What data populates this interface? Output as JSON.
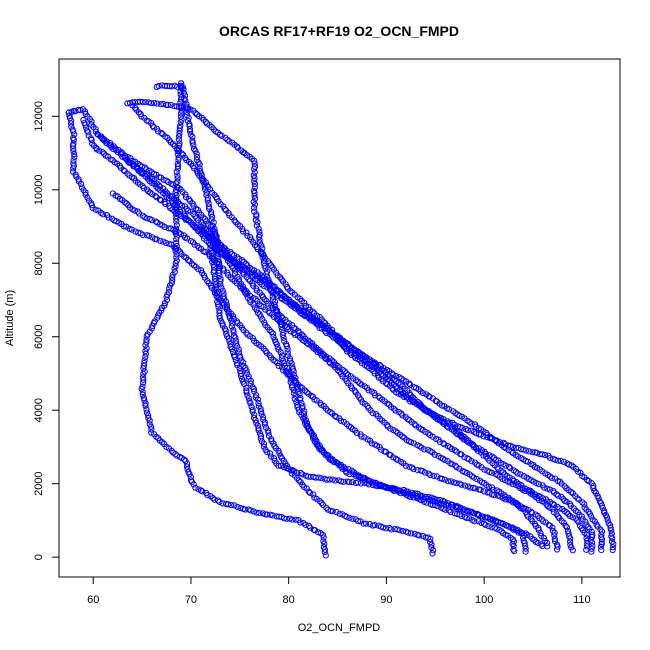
{
  "chart_data": {
    "type": "scatter",
    "title": "ORCAS RF17+RF19 O2_OCN_FMPD",
    "xlabel": "O2_OCN_FMPD",
    "ylabel": "Altitude (m)",
    "xlim": [
      56.5,
      113.9
    ],
    "ylim": [
      -540,
      13560
    ],
    "x_ticks": [
      60,
      70,
      80,
      90,
      100,
      110
    ],
    "y_ticks": [
      0,
      2000,
      4000,
      6000,
      8000,
      10000,
      12000
    ],
    "grid": false,
    "legend": "none",
    "marker": "open-circle",
    "series_color": "#0000ff",
    "profiles": [
      [
        [
          83.8,
          50
        ],
        [
          83.5,
          600
        ],
        [
          81,
          1000
        ],
        [
          77,
          1200
        ],
        [
          73,
          1500
        ],
        [
          70.5,
          1900
        ],
        [
          70,
          2100
        ],
        [
          69.5,
          2600
        ],
        [
          68,
          2900
        ],
        [
          66,
          3400
        ],
        [
          65,
          4500
        ],
        [
          65.5,
          6000
        ],
        [
          67.5,
          7000
        ],
        [
          68.5,
          8000
        ],
        [
          68.5,
          10000
        ],
        [
          69,
          12000
        ],
        [
          69,
          12900
        ]
      ],
      [
        [
          94.8,
          100
        ],
        [
          94.5,
          500
        ],
        [
          92,
          700
        ],
        [
          88,
          900
        ],
        [
          84,
          1300
        ],
        [
          82,
          1800
        ],
        [
          80,
          2400
        ],
        [
          78,
          3300
        ],
        [
          76.5,
          4500
        ],
        [
          75,
          5500
        ],
        [
          74,
          6500
        ],
        [
          73,
          7500
        ],
        [
          72.5,
          8800
        ],
        [
          71.5,
          10000
        ],
        [
          70,
          11500
        ],
        [
          69.2,
          12800
        ],
        [
          67,
          12850
        ],
        [
          66.5,
          12800
        ]
      ],
      [
        [
          103,
          150
        ],
        [
          103,
          500
        ],
        [
          101,
          800
        ],
        [
          98,
          1100
        ],
        [
          95,
          1400
        ],
        [
          92,
          1700
        ],
        [
          88,
          2100
        ],
        [
          84,
          2700
        ],
        [
          82,
          3500
        ],
        [
          81,
          4500
        ],
        [
          80,
          5500
        ],
        [
          79,
          6500
        ],
        [
          77.5,
          8000
        ],
        [
          76.5,
          9500
        ],
        [
          76.5,
          10800
        ],
        [
          73,
          11500
        ],
        [
          70,
          12200
        ],
        [
          68,
          12300
        ],
        [
          64.5,
          12400
        ],
        [
          63.5,
          12350
        ]
      ],
      [
        [
          104.3,
          150
        ],
        [
          104,
          600
        ],
        [
          102,
          900
        ],
        [
          99,
          1200
        ],
        [
          95,
          1500
        ],
        [
          90,
          1900
        ],
        [
          86,
          2300
        ],
        [
          83,
          3000
        ],
        [
          81,
          4000
        ],
        [
          80,
          5000
        ],
        [
          78.5,
          6000
        ],
        [
          76,
          7000
        ],
        [
          74,
          8000
        ],
        [
          72,
          9000
        ],
        [
          69,
          10000
        ],
        [
          64,
          10800
        ],
        [
          60.5,
          11500
        ],
        [
          59,
          12200
        ],
        [
          57.5,
          12100
        ]
      ],
      [
        [
          107.5,
          200
        ],
        [
          107,
          800
        ],
        [
          105,
          1200
        ],
        [
          103,
          1500
        ],
        [
          100,
          1800
        ],
        [
          96,
          2100
        ],
        [
          92,
          2500
        ],
        [
          88,
          3200
        ],
        [
          84,
          4000
        ],
        [
          81,
          4700
        ],
        [
          78,
          5500
        ],
        [
          75,
          6300
        ],
        [
          73,
          7000
        ],
        [
          71,
          7800
        ],
        [
          68,
          8500
        ],
        [
          64,
          8900
        ],
        [
          60,
          9500
        ],
        [
          58,
          10500
        ],
        [
          58,
          11500
        ],
        [
          57.5,
          12100
        ]
      ],
      [
        [
          109,
          200
        ],
        [
          108.5,
          800
        ],
        [
          107,
          1300
        ],
        [
          105,
          1700
        ],
        [
          103,
          2000
        ],
        [
          100,
          2400
        ],
        [
          97,
          2900
        ],
        [
          94,
          3400
        ],
        [
          91,
          4000
        ],
        [
          88,
          4600
        ],
        [
          85,
          5200
        ],
        [
          82,
          5900
        ],
        [
          79,
          6600
        ],
        [
          77,
          7200
        ],
        [
          74.5,
          8000
        ],
        [
          72,
          8800
        ],
        [
          70,
          9400
        ],
        [
          68,
          9800
        ],
        [
          66,
          10300
        ],
        [
          63,
          10900
        ],
        [
          60.5,
          11500
        ]
      ],
      [
        [
          111,
          150
        ],
        [
          111,
          700
        ],
        [
          110,
          1100
        ],
        [
          108.5,
          1500
        ],
        [
          107,
          1800
        ],
        [
          104,
          2200
        ],
        [
          101,
          2700
        ],
        [
          98,
          3200
        ],
        [
          95,
          3800
        ],
        [
          92,
          4400
        ],
        [
          89,
          5100
        ],
        [
          86,
          5700
        ],
        [
          83,
          6300
        ],
        [
          80,
          7000
        ],
        [
          77,
          7700
        ],
        [
          74,
          8300
        ],
        [
          70,
          9100
        ],
        [
          67,
          9700
        ],
        [
          65,
          10100
        ],
        [
          62,
          10800
        ],
        [
          60,
          11200
        ],
        [
          59,
          11900
        ]
      ],
      [
        [
          112,
          200
        ],
        [
          112,
          700
        ],
        [
          111,
          1100
        ],
        [
          110,
          1500
        ],
        [
          108,
          2000
        ],
        [
          105,
          2500
        ],
        [
          102,
          3000
        ],
        [
          99,
          3600
        ],
        [
          96,
          4100
        ],
        [
          93,
          4600
        ],
        [
          90,
          5100
        ],
        [
          87,
          5600
        ],
        [
          84,
          6200
        ],
        [
          81,
          6700
        ],
        [
          78,
          7300
        ],
        [
          75,
          7900
        ],
        [
          72,
          8500
        ],
        [
          70,
          9100
        ],
        [
          68,
          9700
        ],
        [
          66,
          10200
        ],
        [
          63.5,
          10800
        ]
      ],
      [
        [
          113.2,
          200
        ],
        [
          113,
          800
        ],
        [
          112,
          1400
        ],
        [
          111,
          2000
        ],
        [
          109,
          2500
        ],
        [
          106,
          2800
        ],
        [
          103,
          3000
        ],
        [
          100,
          3300
        ],
        [
          97,
          3600
        ],
        [
          94,
          4000
        ],
        [
          91,
          4500
        ],
        [
          88,
          5200
        ],
        [
          86,
          5600
        ],
        [
          84,
          6300
        ],
        [
          82,
          6800
        ],
        [
          80,
          7300
        ],
        [
          78,
          8000
        ],
        [
          76,
          8700
        ],
        [
          74,
          9300
        ],
        [
          72,
          10000
        ],
        [
          70,
          10700
        ],
        [
          68,
          11300
        ],
        [
          65,
          12000
        ],
        [
          64,
          12300
        ]
      ],
      [
        [
          110.5,
          200
        ],
        [
          110.5,
          600
        ],
        [
          109.5,
          1000
        ],
        [
          108,
          1300
        ],
        [
          106,
          1600
        ],
        [
          104,
          1900
        ],
        [
          101.5,
          2400
        ],
        [
          99,
          3000
        ],
        [
          97,
          3500
        ],
        [
          94,
          4000
        ],
        [
          91.5,
          4700
        ],
        [
          89,
          5200
        ],
        [
          86,
          5800
        ],
        [
          83,
          6400
        ],
        [
          80,
          7000
        ],
        [
          77,
          7600
        ],
        [
          73,
          8300
        ],
        [
          71,
          9000
        ]
      ],
      [
        [
          106.5,
          300
        ],
        [
          105.5,
          800
        ],
        [
          104,
          1300
        ],
        [
          102,
          1700
        ],
        [
          100,
          2000
        ],
        [
          97.5,
          2400
        ],
        [
          95,
          2800
        ],
        [
          92,
          3200
        ],
        [
          90,
          3600
        ],
        [
          88,
          4100
        ],
        [
          86.5,
          4600
        ],
        [
          85,
          5100
        ],
        [
          83,
          5600
        ],
        [
          80,
          6200
        ],
        [
          77,
          6900
        ],
        [
          74.5,
          7500
        ],
        [
          72,
          8200
        ],
        [
          69,
          8800
        ],
        [
          65,
          9300
        ],
        [
          62,
          9900
        ]
      ],
      [
        [
          106,
          300
        ],
        [
          104.5,
          600
        ],
        [
          102,
          900
        ],
        [
          99,
          1200
        ],
        [
          96,
          1500
        ],
        [
          92,
          1800
        ],
        [
          88,
          2000
        ],
        [
          84.5,
          2100
        ],
        [
          82,
          2200
        ],
        [
          79,
          2500
        ],
        [
          77.5,
          3000
        ],
        [
          76.5,
          3800
        ],
        [
          75.5,
          4700
        ],
        [
          74,
          5800
        ],
        [
          73,
          6500
        ],
        [
          72.5,
          7500
        ],
        [
          72,
          8500
        ]
      ]
    ]
  }
}
